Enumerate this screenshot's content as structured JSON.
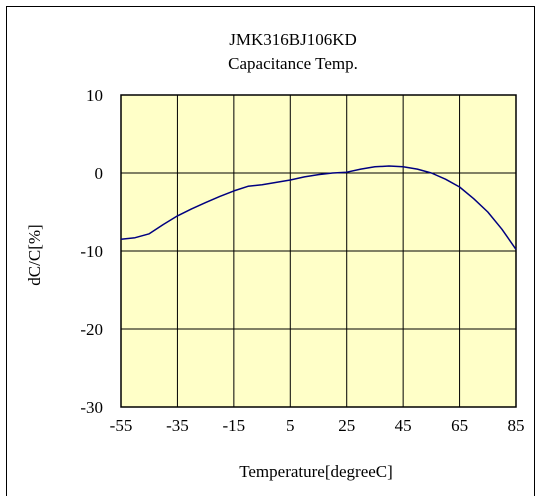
{
  "chart_data": {
    "type": "line",
    "title": "JMK316BJ106KD",
    "subtitle": "Capacitance Temp.",
    "xlabel": "Temperature[degreeC]",
    "ylabel": "dC/C[%]",
    "xlim": [
      -55,
      85
    ],
    "ylim": [
      -30,
      10
    ],
    "x_ticks": [
      -55,
      -35,
      -15,
      5,
      25,
      45,
      65,
      85
    ],
    "y_ticks": [
      10,
      0,
      -10,
      -20,
      -30
    ],
    "grid": true,
    "legend": "none",
    "colors": {
      "plot_bg": "#ffffc8",
      "line": "#000080",
      "grid": "#000000"
    },
    "series": [
      {
        "x": [
          -55,
          -50,
          -45,
          -40,
          -35,
          -30,
          -25,
          -20,
          -15,
          -10,
          -5,
          0,
          5,
          10,
          15,
          20,
          25,
          30,
          35,
          40,
          45,
          50,
          55,
          60,
          65,
          70,
          75,
          80,
          85
        ],
        "values": [
          -8.5,
          -8.3,
          -7.8,
          -6.6,
          -5.5,
          -4.6,
          -3.8,
          -3.0,
          -2.3,
          -1.7,
          -1.5,
          -1.2,
          -0.9,
          -0.5,
          -0.2,
          0.0,
          0.1,
          0.5,
          0.8,
          0.9,
          0.8,
          0.5,
          0.0,
          -0.8,
          -1.8,
          -3.3,
          -5.0,
          -7.2,
          -9.8
        ]
      }
    ]
  }
}
